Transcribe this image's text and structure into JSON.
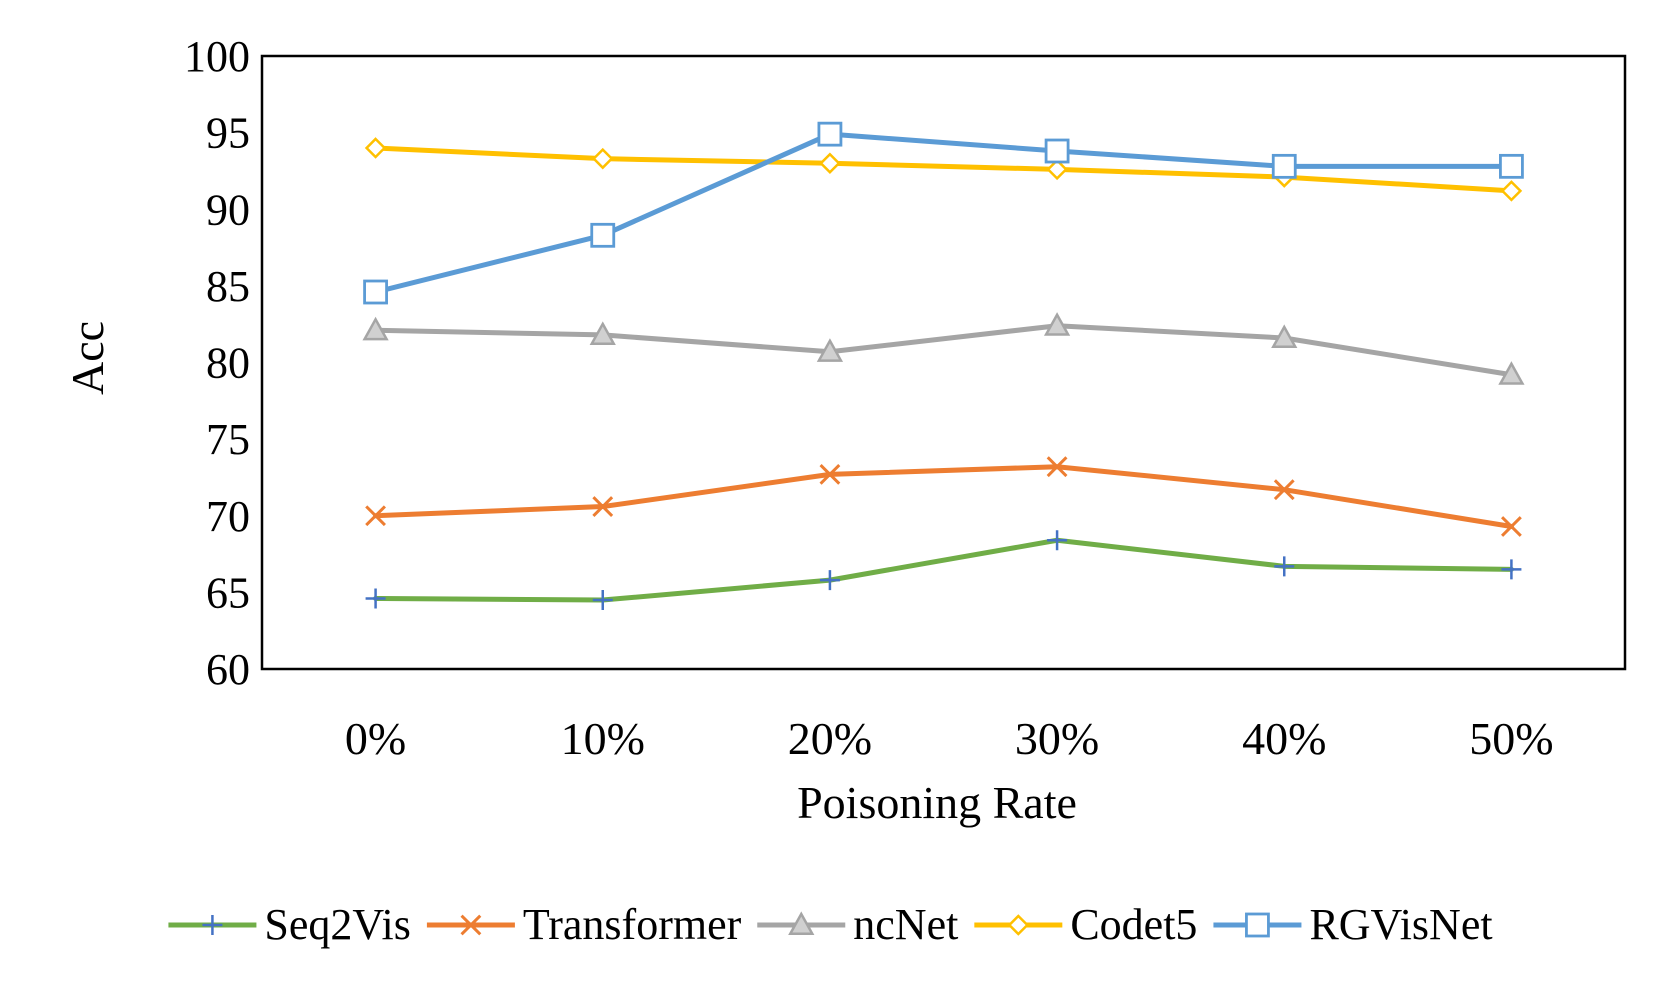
{
  "chart_data": {
    "type": "line",
    "title": "",
    "xlabel": "Poisoning Rate",
    "ylabel": "Acc",
    "categories": [
      "0%",
      "10%",
      "20%",
      "30%",
      "40%",
      "50%"
    ],
    "ylim": [
      60,
      100
    ],
    "yticks": [
      60,
      65,
      70,
      75,
      80,
      85,
      90,
      95,
      100
    ],
    "ytick_labels": [
      "60",
      "65",
      "70",
      "75",
      "80",
      "85",
      "90",
      "95",
      "100"
    ],
    "grid": false,
    "legend_position": "bottom",
    "series": [
      {
        "name": "Seq2Vis",
        "color": "#70AD47",
        "marker": "plus",
        "marker_color": "#4472C4",
        "values": [
          64.6,
          64.5,
          65.8,
          68.4,
          66.7,
          66.5
        ]
      },
      {
        "name": "Transformer",
        "color": "#ED7D31",
        "marker": "x",
        "marker_color": "#ED7D31",
        "values": [
          70.0,
          70.6,
          72.7,
          73.2,
          71.7,
          69.3
        ]
      },
      {
        "name": "ncNet",
        "color": "#A5A5A5",
        "marker": "triangle",
        "marker_color": "#A5A5A5",
        "values": [
          82.1,
          81.8,
          80.7,
          82.4,
          81.6,
          79.2
        ]
      },
      {
        "name": "Codet5",
        "color": "#FFC000",
        "marker": "diamond",
        "marker_color": "#FFC000",
        "values": [
          94.0,
          93.3,
          93.0,
          92.6,
          92.1,
          91.2
        ]
      },
      {
        "name": "RGVisNet",
        "color": "#5B9BD5",
        "marker": "square",
        "marker_color": "#5B9BD5",
        "values": [
          84.6,
          88.3,
          94.9,
          93.8,
          92.8,
          92.8
        ]
      }
    ]
  }
}
